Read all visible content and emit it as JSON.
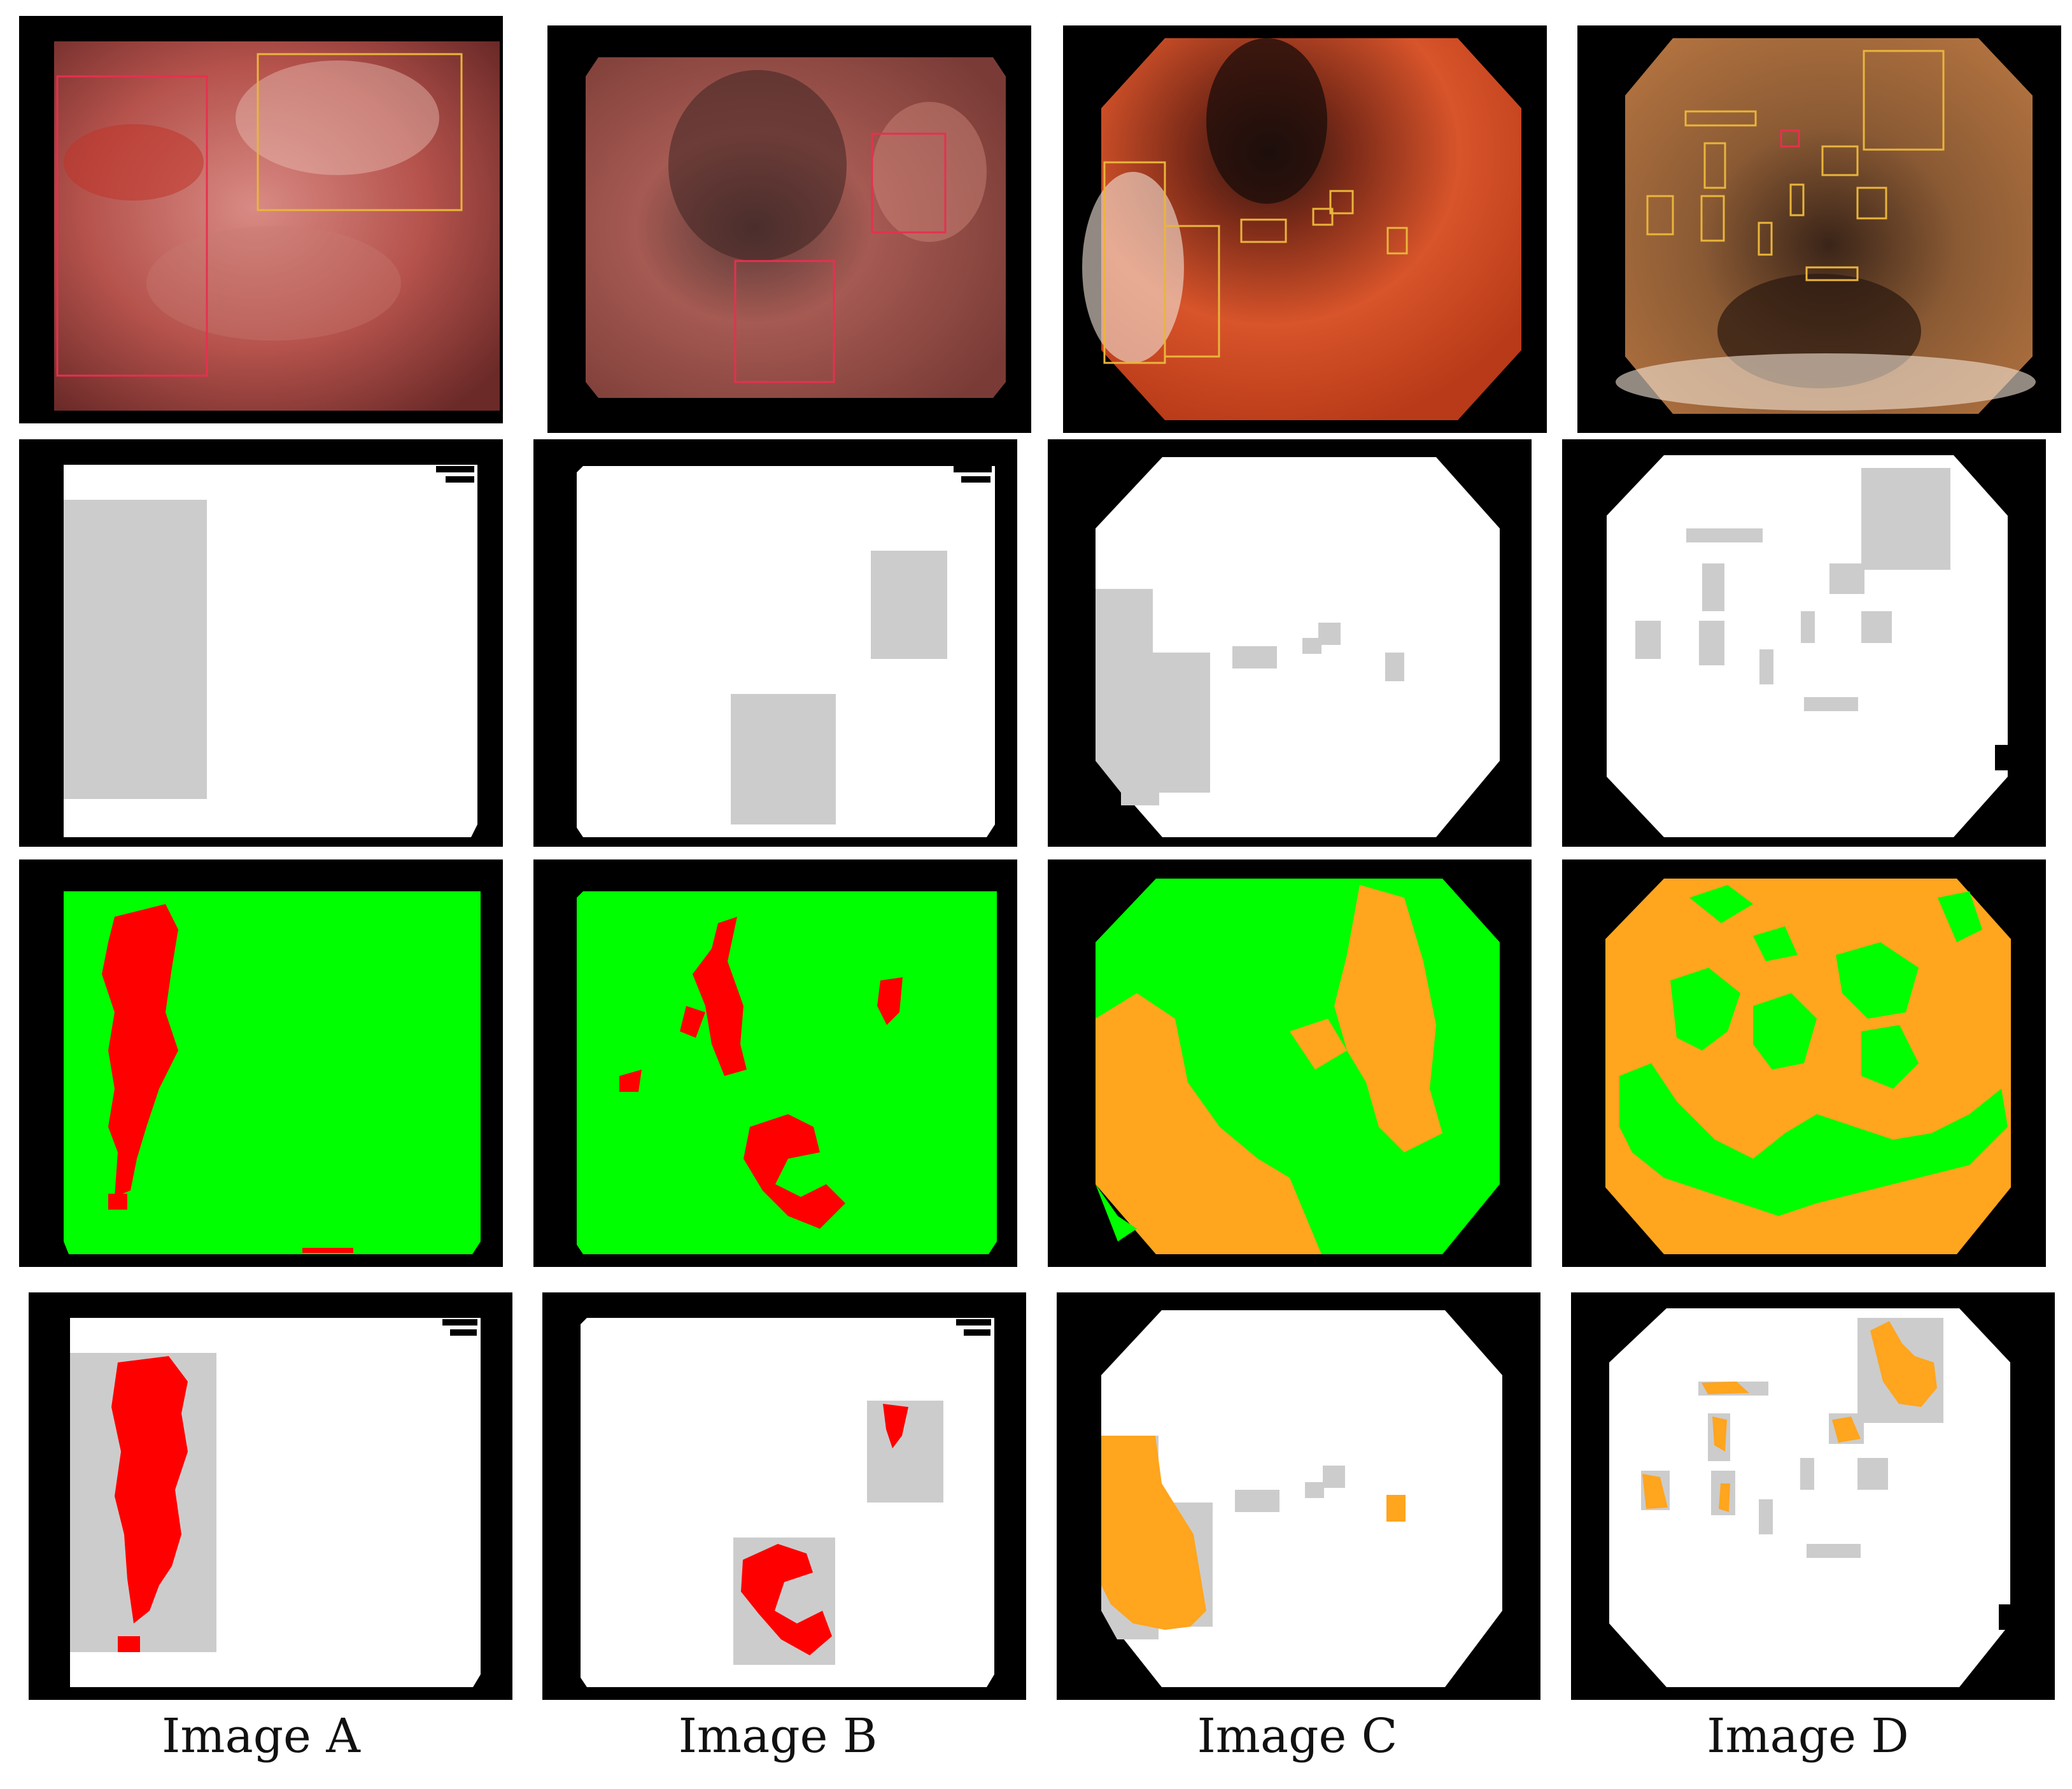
{
  "figure": {
    "captions": [
      "Image A",
      "Image B",
      "Image C",
      "Image D"
    ],
    "rows": [
      "endoscopy-frame",
      "annotation-mask",
      "segmentation-map",
      "overlay-result"
    ],
    "colors": {
      "frame_black": "#000000",
      "mask_white": "#ffffff",
      "box_gray": "#cccccc",
      "green_region": "#00ff00",
      "red_region": "#ff0000",
      "orange_region": "#ffa51e",
      "red_box": "#e6304f",
      "yellow_box": "#e9b53b"
    }
  }
}
